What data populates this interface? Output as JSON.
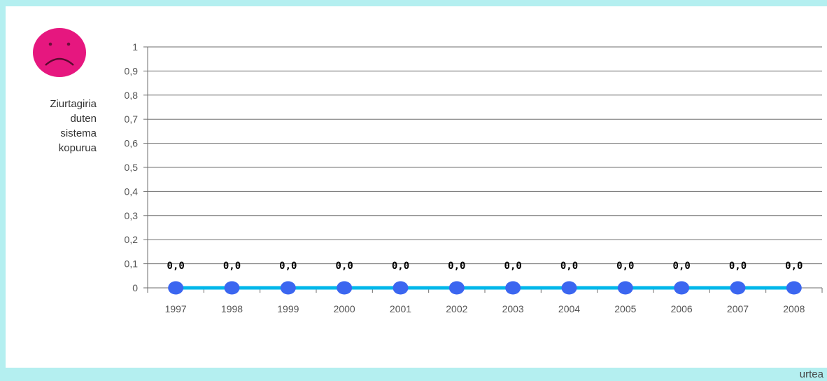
{
  "chart_data": {
    "type": "line",
    "categories": [
      "1997",
      "1998",
      "1999",
      "2000",
      "2001",
      "2002",
      "2003",
      "2004",
      "2005",
      "2006",
      "2007",
      "2008"
    ],
    "series": [
      {
        "values": [
          0,
          0,
          0,
          0,
          0,
          0,
          0,
          0,
          0,
          0,
          0,
          0
        ],
        "data_labels": [
          "0,0",
          "0,0",
          "0,0",
          "0,0",
          "0,0",
          "0,0",
          "0,0",
          "0,0",
          "0,0",
          "0,0",
          "0,0",
          "0,0"
        ]
      }
    ],
    "ylabel": "Ziurtagiria\nduten\nsistema\nkopurua",
    "xlabel": "urtea",
    "ylim": [
      0,
      1
    ],
    "y_ticks": [
      "0",
      "0,1",
      "0,2",
      "0,3",
      "0,4",
      "0,5",
      "0,6",
      "0,7",
      "0,8",
      "0,9",
      "1"
    ],
    "grid": true,
    "legend": "none",
    "colors": {
      "line": "#00b7ea",
      "marker": "#3b66f0",
      "grid": "#6e6e6e",
      "background": "#b4eff0",
      "panel": "#ffffff"
    }
  },
  "icon": {
    "name": "sad-face-icon",
    "color": "#e6177f"
  }
}
